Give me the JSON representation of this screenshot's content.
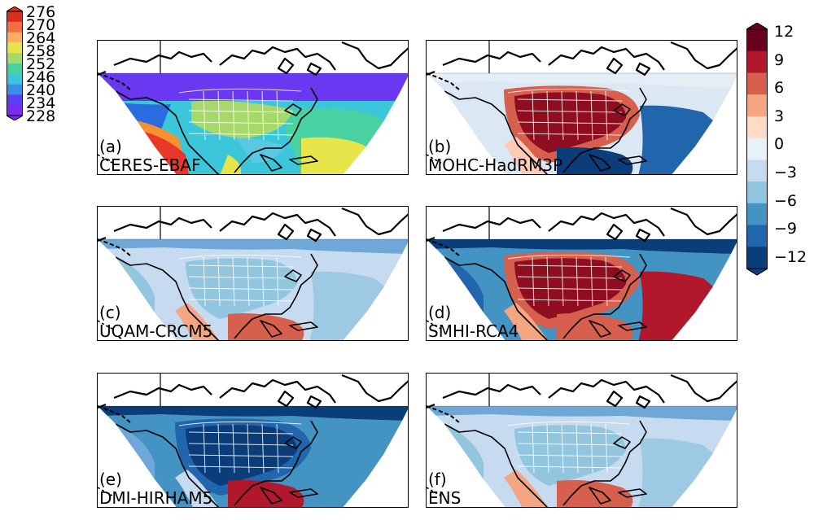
{
  "left_colorbar": {
    "ticks": [
      "276",
      "270",
      "264",
      "258",
      "252",
      "246",
      "240",
      "234",
      "228"
    ],
    "colors": [
      "#d7301f",
      "#f46d43",
      "#fdae61",
      "#e6e64a",
      "#a6d96a",
      "#49d1a1",
      "#3bc7d9",
      "#3b8ee8",
      "#5b3ff0",
      "#7a2df0"
    ]
  },
  "right_colorbar": {
    "ticks": [
      "12",
      "9",
      "6",
      "3",
      "0",
      "−3",
      "−6",
      "−9",
      "−12"
    ],
    "colors": [
      "#67001f",
      "#b2182b",
      "#d6604d",
      "#f4a582",
      "#fddbc7",
      "#e8f1f8",
      "#c6dbef",
      "#92c5de",
      "#4393c3",
      "#2166ac",
      "#0b3d7a"
    ]
  },
  "panels": [
    {
      "letter": "(a)",
      "name": "CERES-EBAF",
      "scheme": "abs"
    },
    {
      "letter": "(b)",
      "name": "MOHC-HadRM3P",
      "scheme": "warm"
    },
    {
      "letter": "(c)",
      "name": "UQAM-CRCM5",
      "scheme": "coolmid"
    },
    {
      "letter": "(d)",
      "name": "SMHI-RCA4",
      "scheme": "mixed"
    },
    {
      "letter": "(e)",
      "name": "DMI-HIRHAM5",
      "scheme": "cold"
    },
    {
      "letter": "(f)",
      "name": "ENS",
      "scheme": "coolmid"
    }
  ]
}
